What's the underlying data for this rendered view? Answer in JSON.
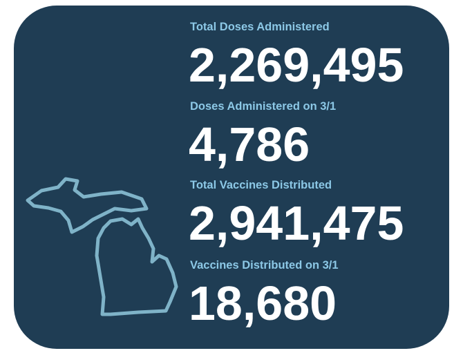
{
  "stats": [
    {
      "label": "Total Doses Administered",
      "value": "2,269,495"
    },
    {
      "label": "Doses Administered on 3/1",
      "value": "4,786"
    },
    {
      "label": "Total Vaccines Distributed",
      "value": "2,941,475"
    },
    {
      "label": "Vaccines Distributed on 3/1",
      "value": "18,680"
    }
  ]
}
